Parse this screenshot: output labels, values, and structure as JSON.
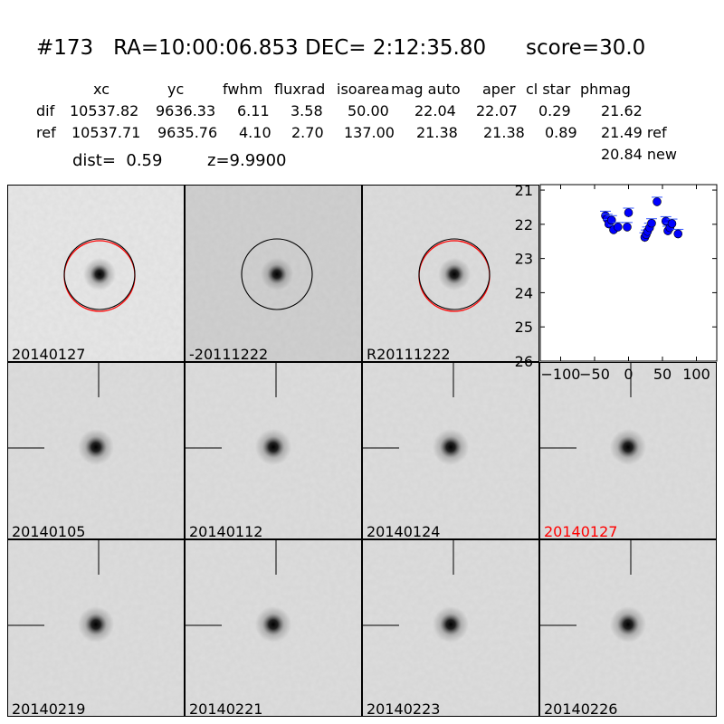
{
  "title": {
    "id": "#173",
    "ra": "RA=10:00:06.853",
    "dec": "DEC= 2:12:35.80",
    "score": "score=30.0"
  },
  "table": {
    "headers": [
      "xc",
      "yc",
      "fwhm",
      "fluxrad",
      "isoarea",
      "mag auto",
      "aper",
      "cl star",
      "phmag"
    ],
    "rows": [
      {
        "label": "dif",
        "values": [
          "10537.82",
          "9636.33",
          "6.11",
          "3.58",
          "50.00",
          "22.04",
          "22.07",
          "0.29",
          "21.62"
        ]
      },
      {
        "label": "ref",
        "values": [
          "10537.71",
          "9635.76",
          "4.10",
          "2.70",
          "137.00",
          "21.38",
          "21.38",
          "0.89",
          "21.49 ref"
        ]
      }
    ],
    "phmag_new": "20.84 new",
    "dist": "dist=  0.59",
    "z": "z=9.9900"
  },
  "panels": [
    {
      "label": "20140127",
      "circles": [
        "black",
        "red"
      ],
      "crosshair": false,
      "label_color": "#000000"
    },
    {
      "label": "-20111222",
      "circles": [
        "black"
      ],
      "crosshair": false,
      "label_color": "#000000"
    },
    {
      "label": "R20111222",
      "circles": [
        "black",
        "red"
      ],
      "crosshair": false,
      "label_color": "#000000"
    },
    {
      "label": "20140105",
      "crosshair": true,
      "label_color": "#000000"
    },
    {
      "label": "20140112",
      "crosshair": true,
      "label_color": "#000000"
    },
    {
      "label": "20140124",
      "crosshair": true,
      "label_color": "#000000"
    },
    {
      "label": "20140127",
      "crosshair": true,
      "label_color": "#ff0000"
    },
    {
      "label": "20140219",
      "crosshair": true,
      "label_color": "#000000"
    },
    {
      "label": "20140221",
      "crosshair": true,
      "label_color": "#000000"
    },
    {
      "label": "20140223",
      "crosshair": true,
      "label_color": "#000000"
    },
    {
      "label": "20140226",
      "crosshair": true,
      "label_color": "#000000"
    }
  ],
  "chart_data": {
    "type": "scatter",
    "xlim": [
      -130,
      130
    ],
    "ylim": [
      26,
      20.84
    ],
    "y_inverted": true,
    "xticks": [
      "−100",
      "−50",
      "0",
      "50",
      "100"
    ],
    "xtick_values": [
      -100,
      -50,
      0,
      50,
      100
    ],
    "yticks": [
      "21",
      "22",
      "23",
      "24",
      "25",
      "26"
    ],
    "ytick_values": [
      21,
      22,
      23,
      24,
      25,
      26
    ],
    "marker_color": "#0000ff",
    "points": [
      [
        -34,
        21.75
      ],
      [
        -31.6,
        21.84
      ],
      [
        -29,
        21.99
      ],
      [
        -25,
        21.88
      ],
      [
        -22,
        22.16
      ],
      [
        -15.6,
        22.08
      ],
      [
        -2,
        22.08
      ],
      [
        0,
        21.66
      ],
      [
        42,
        21.34
      ],
      [
        24,
        22.38
      ],
      [
        26,
        22.3
      ],
      [
        28,
        22.21
      ],
      [
        31,
        22.1
      ],
      [
        34,
        21.97
      ],
      [
        55,
        21.91
      ],
      [
        58,
        22.19
      ],
      [
        61,
        22.1
      ],
      [
        64,
        21.98
      ],
      [
        73,
        22.28
      ]
    ]
  }
}
